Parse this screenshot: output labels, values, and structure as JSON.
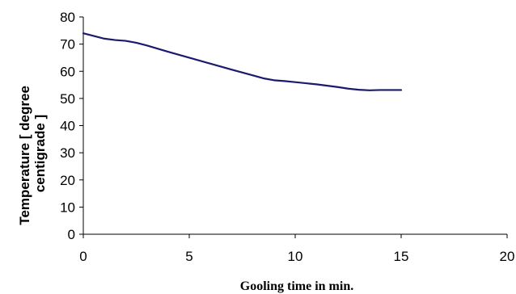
{
  "chart_data": {
    "type": "line",
    "xlabel": "Gooling time in min.",
    "ylabel_lines": [
      "Temperature [ degree",
      "centigrade ]"
    ],
    "xlim": [
      0,
      20
    ],
    "ylim": [
      0,
      80
    ],
    "x_ticks": [
      "0",
      "5",
      "10",
      "15",
      "20"
    ],
    "y_ticks": [
      "0",
      "10",
      "20",
      "30",
      "40",
      "50",
      "60",
      "70",
      "80"
    ],
    "grid": false,
    "legend": "none",
    "series": [
      {
        "color": "#1a1a6e",
        "x": [
          0,
          0.5,
          1,
          1.5,
          2,
          2.5,
          3,
          4,
          5,
          6,
          7,
          8,
          8.5,
          9,
          9.5,
          10,
          11,
          12,
          12.5,
          13,
          13.5,
          14,
          14.5,
          15
        ],
        "y": [
          74,
          73,
          72,
          71.5,
          71.2,
          70.5,
          69.5,
          67.2,
          65,
          62.8,
          60.6,
          58.5,
          57.4,
          56.7,
          56.4,
          56,
          55.2,
          54.2,
          53.6,
          53.2,
          53,
          53.1,
          53.1,
          53.1
        ]
      }
    ]
  }
}
